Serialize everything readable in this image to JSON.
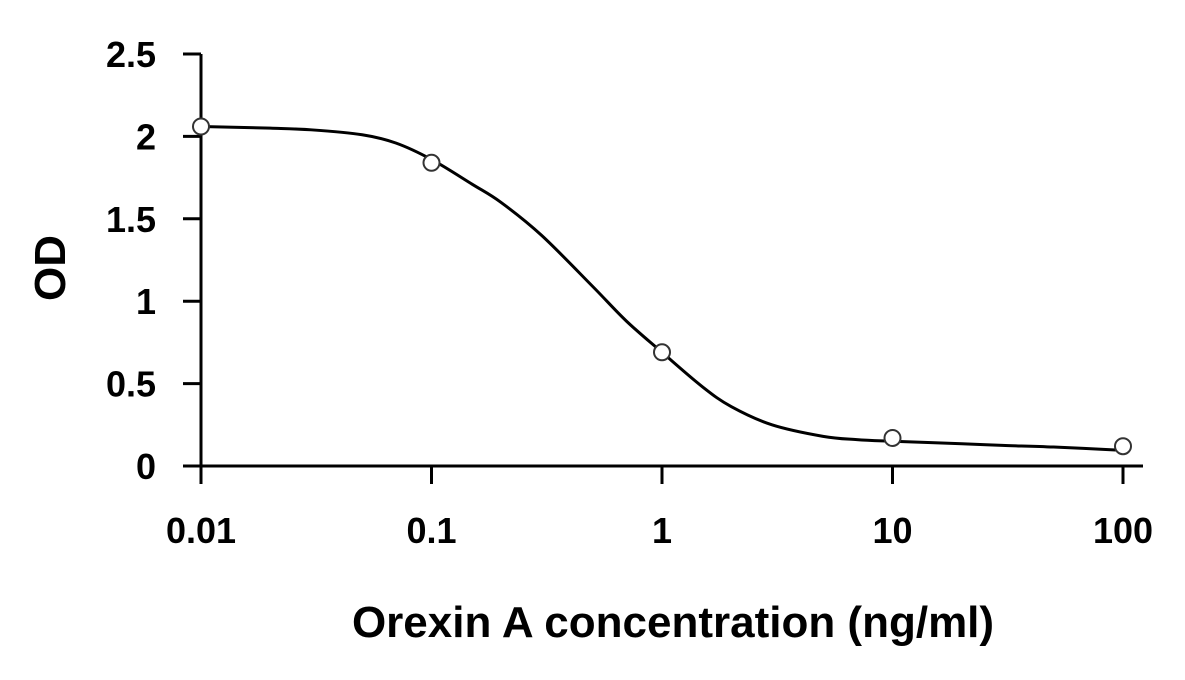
{
  "chart_data": {
    "type": "scatter",
    "title": "",
    "xlabel": "Orexin A concentration (ng/ml)",
    "ylabel": "OD",
    "x_scale": "log",
    "xlim": [
      0.01,
      100
    ],
    "ylim": [
      0,
      2.5
    ],
    "x_ticks": [
      0.01,
      0.1,
      1,
      10,
      100
    ],
    "x_tick_labels": [
      "0.01",
      "0.1",
      "1",
      "10",
      "100"
    ],
    "y_ticks": [
      0,
      0.5,
      1,
      1.5,
      2,
      2.5
    ],
    "y_tick_labels": [
      "0",
      "0.5",
      "1",
      "1.5",
      "2",
      "2.5"
    ],
    "grid": false,
    "legend": "none",
    "series": [
      {
        "type": "scatter",
        "marker": "open-circle",
        "x": [
          0.01,
          0.1,
          1,
          10,
          100
        ],
        "y": [
          2.06,
          1.84,
          0.69,
          0.17,
          0.12
        ]
      },
      {
        "type": "line",
        "style": "smooth-fit",
        "x": [
          0.01,
          0.02,
          0.03,
          0.05,
          0.07,
          0.1,
          0.15,
          0.2,
          0.3,
          0.5,
          0.7,
          1,
          1.5,
          2,
          3,
          5,
          7,
          10,
          20,
          30,
          50,
          100
        ],
        "y": [
          2.06,
          2.05,
          2.04,
          2.01,
          1.96,
          1.86,
          1.71,
          1.6,
          1.4,
          1.09,
          0.88,
          0.69,
          0.48,
          0.36,
          0.25,
          0.18,
          0.16,
          0.15,
          0.135,
          0.125,
          0.115,
          0.095
        ]
      }
    ],
    "colors": {
      "axis": "#000000",
      "line": "#000000",
      "marker_stroke": "#333333",
      "marker_fill": "#ffffff",
      "background": "#ffffff"
    }
  }
}
